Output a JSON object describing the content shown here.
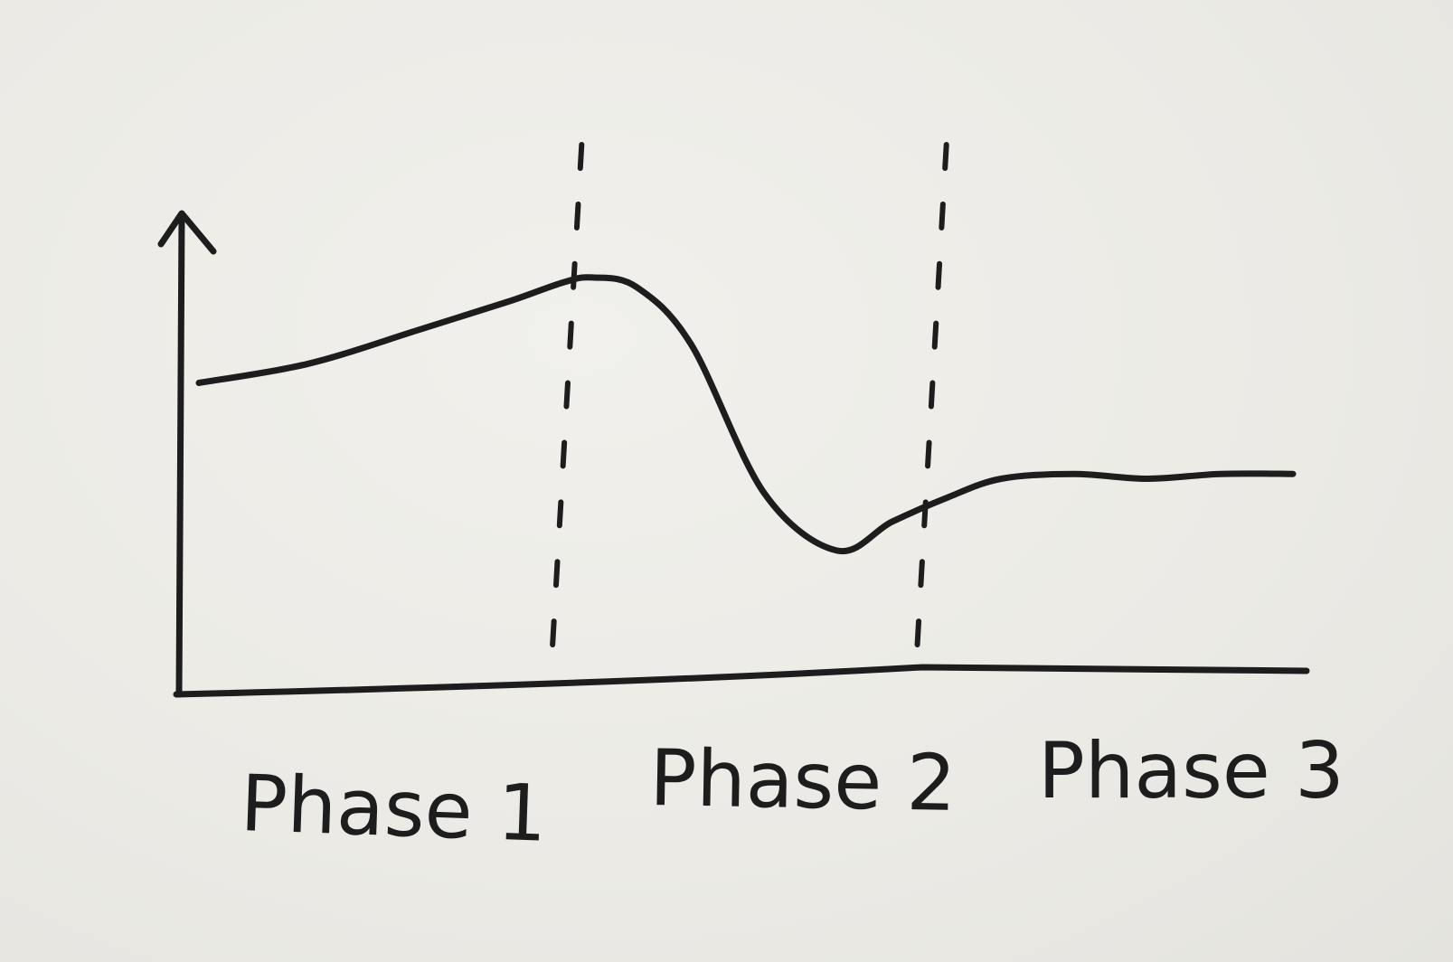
{
  "chart_data": {
    "type": "line",
    "categories": [
      "Phase 1",
      "Phase 2",
      "Phase 3"
    ],
    "phase_boundaries": [
      1,
      2
    ],
    "xlim": [
      0,
      3
    ],
    "ylim": [
      0,
      1
    ],
    "grid": false,
    "title": "",
    "xlabel": "",
    "ylabel": "",
    "series": [
      {
        "x": [
          0.0,
          0.3,
          0.6,
          0.85,
          1.0,
          1.08,
          1.2,
          1.35,
          1.55,
          1.75,
          1.9,
          2.05,
          2.2,
          2.4,
          2.6,
          2.8,
          3.0
        ],
        "values": [
          0.65,
          0.69,
          0.76,
          0.82,
          0.86,
          0.87,
          0.85,
          0.73,
          0.42,
          0.3,
          0.36,
          0.41,
          0.45,
          0.46,
          0.45,
          0.46,
          0.46
        ]
      }
    ]
  },
  "colors": {
    "ink": "#1d1d1d",
    "paper": "#ecebe6"
  }
}
